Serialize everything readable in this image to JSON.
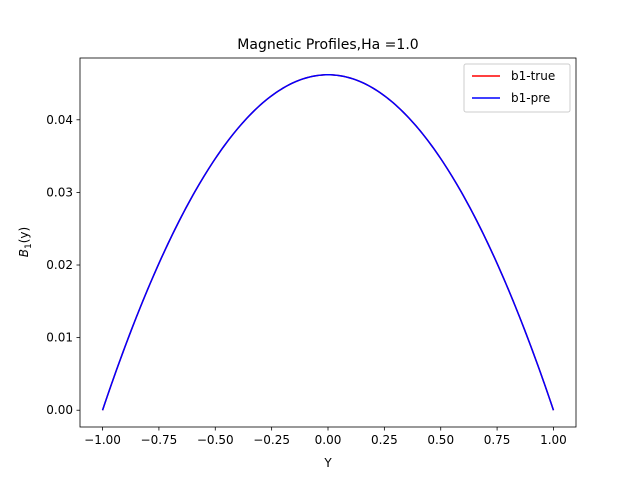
{
  "chart_data": {
    "type": "line",
    "title": "Magnetic Profiles,Ha =1.0",
    "xlabel": "Y",
    "ylabel_main": "B",
    "ylabel_sub": "1",
    "ylabel_suffix": "(y)",
    "xlim": [
      -1.1,
      1.1
    ],
    "ylim": [
      -0.00231,
      0.04851
    ],
    "xticks": [
      -1.0,
      -0.75,
      -0.5,
      -0.25,
      0.0,
      0.25,
      0.5,
      0.75,
      1.0
    ],
    "xtick_labels": [
      "−1.00",
      "−0.75",
      "−0.50",
      "−0.25",
      "0.00",
      "0.25",
      "0.50",
      "0.75",
      "1.00"
    ],
    "yticks": [
      0.0,
      0.01,
      0.02,
      0.03,
      0.04
    ],
    "ytick_labels": [
      "0.00",
      "0.01",
      "0.02",
      "0.03",
      "0.04"
    ],
    "grid": false,
    "legend_position": "top-right",
    "series": [
      {
        "name": "b1-true",
        "color": "#ff0000",
        "x": [
          -1.0,
          -0.9,
          -0.8,
          -0.7,
          -0.6,
          -0.5,
          -0.4,
          -0.3,
          -0.2,
          -0.1,
          0.0,
          0.1,
          0.2,
          0.3,
          0.4,
          0.5,
          0.6,
          0.7,
          0.8,
          0.9,
          1.0
        ],
        "y": [
          0.0,
          0.0089,
          0.0168,
          0.0237,
          0.0297,
          0.0347,
          0.0389,
          0.0421,
          0.0444,
          0.0458,
          0.0462,
          0.0458,
          0.0444,
          0.0421,
          0.0389,
          0.0347,
          0.0297,
          0.0237,
          0.0168,
          0.0089,
          0.0
        ]
      },
      {
        "name": "b1-pre",
        "color": "#0000ff",
        "x": [
          -1.0,
          -0.9,
          -0.8,
          -0.7,
          -0.6,
          -0.5,
          -0.4,
          -0.3,
          -0.2,
          -0.1,
          0.0,
          0.1,
          0.2,
          0.3,
          0.4,
          0.5,
          0.6,
          0.7,
          0.8,
          0.9,
          1.0
        ],
        "y": [
          0.0,
          0.0089,
          0.0168,
          0.0237,
          0.0297,
          0.0347,
          0.0389,
          0.0421,
          0.0444,
          0.0458,
          0.0462,
          0.0458,
          0.0444,
          0.0421,
          0.0389,
          0.0347,
          0.0297,
          0.0237,
          0.0168,
          0.0089,
          0.0
        ]
      }
    ]
  }
}
